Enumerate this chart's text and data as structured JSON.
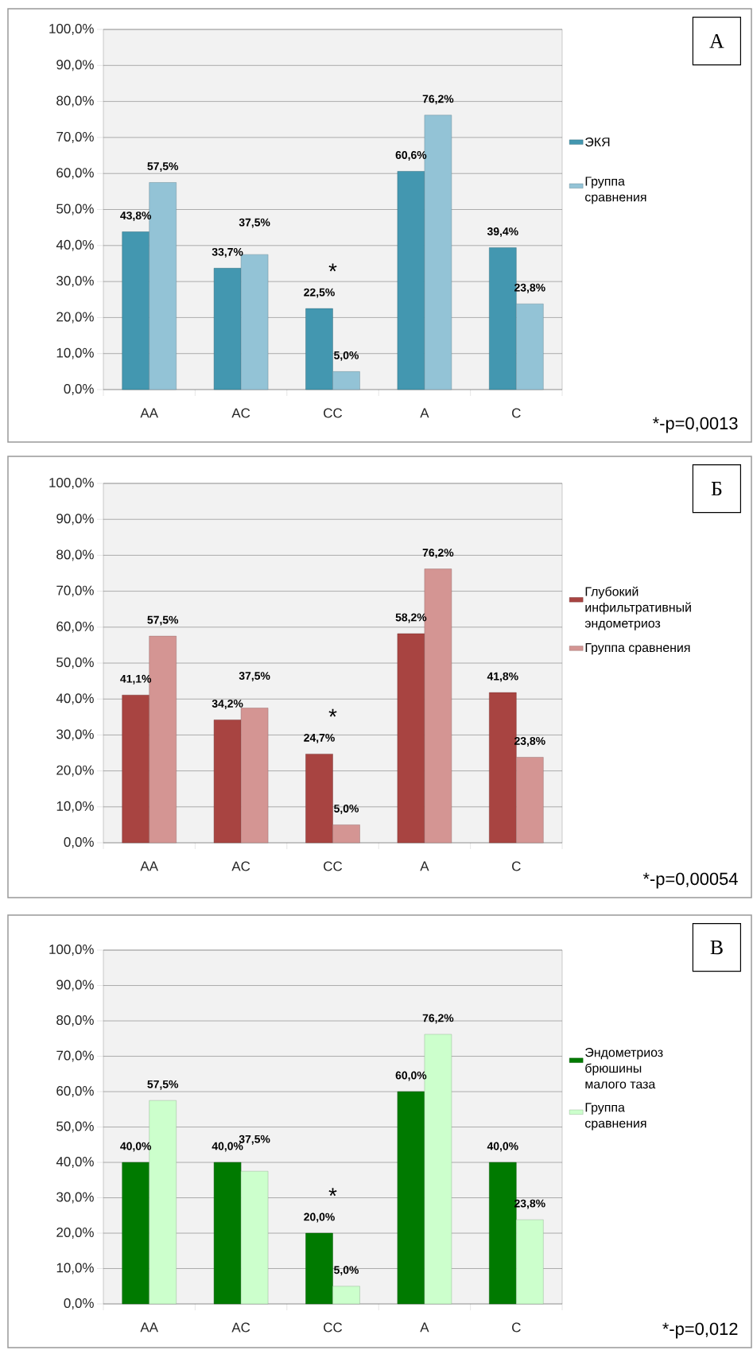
{
  "chart_data": [
    {
      "type": "bar",
      "categories": [
        "AA",
        "AC",
        "CC",
        "A",
        "C"
      ],
      "series": [
        {
          "name": "ЭКЯ",
          "color": "#4397b0",
          "values": [
            43.8,
            33.7,
            22.5,
            60.6,
            39.4
          ],
          "value_labels": [
            "43,8%",
            "33,7%",
            "22,5%",
            "60,6%",
            "39,4%"
          ]
        },
        {
          "name": "Группа сравнения",
          "color": "#93c3d6",
          "values": [
            57.5,
            37.5,
            5.0,
            76.2,
            23.8
          ],
          "value_labels": [
            "57,5%",
            "37,5%",
            "5,0%",
            "76,2%",
            "23,8%"
          ]
        }
      ],
      "ylim": [
        0,
        100
      ],
      "yticks": [
        {
          "value": 0,
          "label": "0,0%"
        },
        {
          "value": 10,
          "label": "10,0%"
        },
        {
          "value": 20,
          "label": "20,0%"
        },
        {
          "value": 30,
          "label": "30,0%"
        },
        {
          "value": 40,
          "label": "40,0%"
        },
        {
          "value": 50,
          "label": "50,0%"
        },
        {
          "value": 60,
          "label": "60,0%"
        },
        {
          "value": 70,
          "label": "70,0%"
        },
        {
          "value": 80,
          "label": "80,0%"
        },
        {
          "value": 90,
          "label": "90,0%"
        },
        {
          "value": 100,
          "label": "100,0%"
        }
      ],
      "grid": "y",
      "legend": "right",
      "annotations": [
        "А",
        "*",
        "*-p=0,0013"
      ]
    },
    {
      "type": "bar",
      "categories": [
        "AA",
        "AC",
        "CC",
        "A",
        "C"
      ],
      "series": [
        {
          "name": "Глубокий инфильтративный эндометриоз",
          "color": "#a84441",
          "values": [
            41.1,
            34.2,
            24.7,
            58.2,
            41.8
          ],
          "value_labels": [
            "41,1%",
            "34,2%",
            "24,7%",
            "58,2%",
            "41,8%"
          ]
        },
        {
          "name": "Группа сравнения",
          "color": "#d49593",
          "values": [
            57.5,
            37.5,
            5.0,
            76.2,
            23.8
          ],
          "value_labels": [
            "57,5%",
            "37,5%",
            "5,0%",
            "76,2%",
            "23,8%"
          ]
        }
      ],
      "ylim": [
        0,
        100
      ],
      "yticks": [
        {
          "value": 0,
          "label": "0,0%"
        },
        {
          "value": 10,
          "label": "10,0%"
        },
        {
          "value": 20,
          "label": "20,0%"
        },
        {
          "value": 30,
          "label": "30,0%"
        },
        {
          "value": 40,
          "label": "40,0%"
        },
        {
          "value": 50,
          "label": "50,0%"
        },
        {
          "value": 60,
          "label": "60,0%"
        },
        {
          "value": 70,
          "label": "70,0%"
        },
        {
          "value": 80,
          "label": "80,0%"
        },
        {
          "value": 90,
          "label": "90,0%"
        },
        {
          "value": 100,
          "label": "100,0%"
        }
      ],
      "grid": "y",
      "legend": "right",
      "annotations": [
        "Б",
        "*",
        "*-p=0,00054"
      ]
    },
    {
      "type": "bar",
      "categories": [
        "AA",
        "AC",
        "CC",
        "A",
        "C"
      ],
      "series": [
        {
          "name": "Эндометриоз брюшины малого таза",
          "color": "#007a00",
          "values": [
            40.0,
            40.0,
            20.0,
            60.0,
            40.0
          ],
          "value_labels": [
            "40,0%",
            "40,0%",
            "20,0%",
            "60,0%",
            "40,0%"
          ]
        },
        {
          "name": "Группа сравнения",
          "color": "#ccffcc",
          "values": [
            57.5,
            37.5,
            5.0,
            76.2,
            23.8
          ],
          "value_labels": [
            "57,5%",
            "37,5%",
            "5,0%",
            "76,2%",
            "23,8%"
          ]
        }
      ],
      "ylim": [
        0,
        100
      ],
      "yticks": [
        {
          "value": 0,
          "label": "0,0%"
        },
        {
          "value": 10,
          "label": "10,0%"
        },
        {
          "value": 20,
          "label": "20,0%"
        },
        {
          "value": 30,
          "label": "30,0%"
        },
        {
          "value": 40,
          "label": "40,0%"
        },
        {
          "value": 50,
          "label": "50,0%"
        },
        {
          "value": 60,
          "label": "60,0%"
        },
        {
          "value": 70,
          "label": "70,0%"
        },
        {
          "value": 80,
          "label": "80,0%"
        },
        {
          "value": 90,
          "label": "90,0%"
        },
        {
          "value": 100,
          "label": "100,0%"
        }
      ],
      "grid": "y",
      "legend": "right",
      "annotations": [
        "В",
        "*",
        "*-p=0,012"
      ]
    }
  ]
}
